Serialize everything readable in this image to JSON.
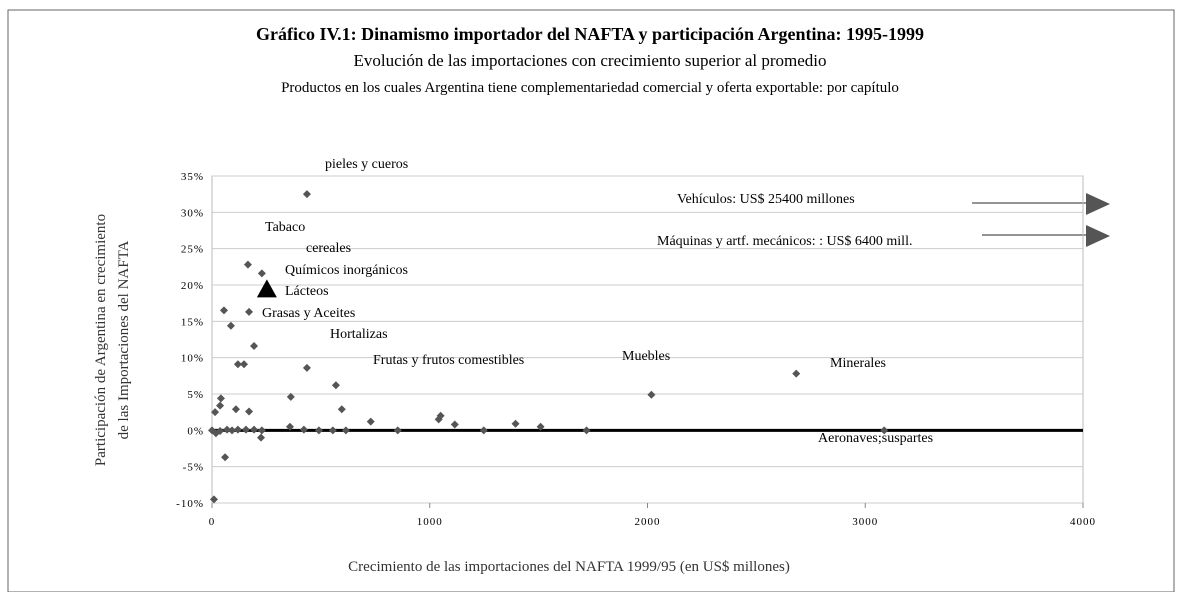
{
  "chart_data": {
    "type": "scatter",
    "title": "Gráfico IV.1: Dinamismo importador del NAFTA y participación Argentina: 1995-1999",
    "subtitle": "Evolución de las importaciones con crecimiento superior al promedio",
    "subtitle2": "Productos en los cuales Argentina tiene complementariedad comercial y oferta exportable: por capítulo",
    "x_label": "Crecimiento de las importaciones del NAFTA 1999/95 (en US$ millones)",
    "y_label": [
      "Participación de Argentina en crecimiento",
      "de las  Importaciones del NAFTA"
    ],
    "xlim": [
      0,
      4000
    ],
    "xticks": [
      0,
      1000,
      2000,
      3000,
      4000
    ],
    "ylim": [
      -10,
      35
    ],
    "yticks": [
      {
        "value": 35,
        "label": "35%"
      },
      {
        "value": 30,
        "label": "30%"
      },
      {
        "value": 25,
        "label": "25%"
      },
      {
        "value": 20,
        "label": "20%"
      },
      {
        "value": 15,
        "label": "15%"
      },
      {
        "value": 10,
        "label": "10%"
      },
      {
        "value": 5,
        "label": "5%"
      },
      {
        "value": 0,
        "label": "0%"
      },
      {
        "value": -5,
        "label": "-5%"
      },
      {
        "value": -10,
        "label": "-10%"
      }
    ],
    "grid": true,
    "series": [
      {
        "color": "#555555",
        "marker": "diamond",
        "x": [
          436,
          165,
          229,
          55,
          170,
          87,
          193,
          119,
          147,
          436,
          569,
          2018,
          2683,
          362,
          41,
          37,
          14,
          110,
          170,
          596,
          729,
          1050,
          1041,
          1115,
          1394,
          1509,
          1720,
          3087,
          358,
          422,
          491,
          555,
          615,
          853,
          1248,
          225,
          60,
          9,
          0,
          18,
          37,
          69,
          92,
          119,
          156,
          193,
          229
        ],
        "values": [
          32.5,
          22.8,
          21.6,
          16.5,
          16.3,
          14.4,
          11.6,
          9.1,
          9.1,
          8.6,
          6.2,
          4.9,
          7.8,
          4.6,
          4.4,
          3.4,
          2.5,
          2.9,
          2.6,
          2.9,
          1.2,
          2.0,
          1.5,
          0.8,
          0.9,
          0.5,
          0,
          0,
          0.5,
          0.1,
          0,
          0,
          0,
          0,
          0,
          -1.0,
          -3.7,
          -9.5,
          0,
          -0.4,
          -0.1,
          0.1,
          0,
          0.1,
          0.1,
          0.1,
          0
        ]
      },
      {
        "color": "#000000",
        "marker": "triangle",
        "x": [
          252
        ],
        "values": [
          19.4
        ]
      }
    ],
    "annotations": [
      "pieles y cueros",
      "Vehículos: US$ 25400 millones",
      "Tabaco",
      "Máquinas y artf. mecánicos: : US$ 6400 mill.",
      "cereales",
      "Químicos inorgánicos",
      "Lácteos",
      "Grasas y Aceites",
      "Hortalizas",
      "Muebles",
      "Frutas y frutos comestibles",
      "Minerales",
      "Aeronaves;suspartes"
    ]
  }
}
